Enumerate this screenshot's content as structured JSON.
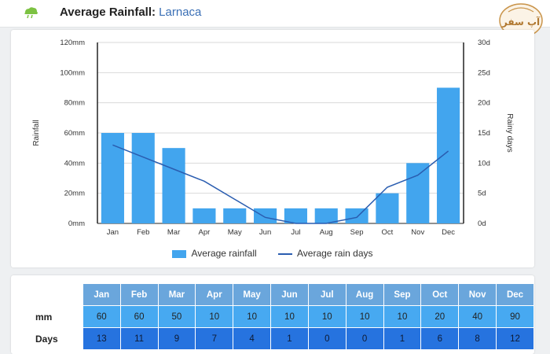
{
  "header": {
    "title": "Average Rainfall:",
    "place": "Larnaca",
    "logo_text": "آپ سفر",
    "colors": {
      "place": "#3a6fb5"
    }
  },
  "chart_data": {
    "type": "bar",
    "categories": [
      "Jan",
      "Feb",
      "Mar",
      "Apr",
      "May",
      "Jun",
      "Jul",
      "Aug",
      "Sep",
      "Oct",
      "Nov",
      "Dec"
    ],
    "series": [
      {
        "name": "Average rainfall",
        "type": "bar",
        "axis": "left",
        "values": [
          60,
          60,
          50,
          10,
          10,
          10,
          10,
          10,
          10,
          20,
          40,
          90
        ],
        "color": "#42a5ee"
      },
      {
        "name": "Average rain days",
        "type": "line",
        "axis": "right",
        "values": [
          13,
          11,
          9,
          7,
          4,
          1,
          0,
          0,
          1,
          6,
          8,
          12
        ],
        "color": "#2a5db0"
      }
    ],
    "ylabel": "Rainfall",
    "y2label": "Rainy days",
    "ylim": [
      0,
      120
    ],
    "y2lim": [
      0,
      30
    ],
    "yticks": [
      "0mm",
      "20mm",
      "40mm",
      "60mm",
      "80mm",
      "100mm",
      "120mm"
    ],
    "y2ticks": [
      "0d",
      "5d",
      "10d",
      "15d",
      "20d",
      "25d",
      "30d"
    ],
    "grid": true,
    "legend": "bottom-center"
  },
  "table": {
    "months": [
      "Jan",
      "Feb",
      "Mar",
      "Apr",
      "May",
      "Jun",
      "Jul",
      "Aug",
      "Sep",
      "Oct",
      "Nov",
      "Dec"
    ],
    "rows": [
      {
        "label": "mm",
        "values": [
          "60",
          "60",
          "50",
          "10",
          "10",
          "10",
          "10",
          "10",
          "10",
          "20",
          "40",
          "90"
        ]
      },
      {
        "label": "Days",
        "values": [
          "13",
          "11",
          "9",
          "7",
          "4",
          "1",
          "0",
          "0",
          "1",
          "6",
          "8",
          "12"
        ]
      }
    ]
  }
}
